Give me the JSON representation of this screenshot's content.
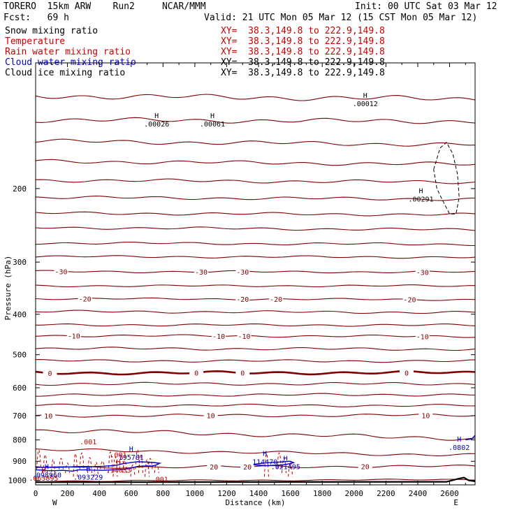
{
  "header": {
    "model": "TORERO  15km ARW    Run2     NCAR/MMM",
    "init": "Init: 00 UTC Sat 03 Mar 12",
    "fcst": "Fcst:   69 h",
    "valid": "Valid: 21 UTC Mon 05 Mar 12 (15 CST Mon 05 Mar 12)"
  },
  "fields": [
    {
      "name": "Snow mixing ratio",
      "color": "#000000",
      "xy": "XY=  38.3,149.8 to 222.9,149.8"
    },
    {
      "name": "Temperature",
      "color": "#cc0000",
      "xy": "XY=  38.3,149.8 to 222.9,149.8"
    },
    {
      "name": "Rain water mixing ratio",
      "color": "#cc0000",
      "xy": "XY=  38.3,149.8 to 222.9,149.8"
    },
    {
      "name": "Cloud water mixing ratio",
      "color": "#0000cc",
      "xy": "XY=  38.3,149.8 to 222.9,149.8"
    },
    {
      "name": "Cloud ice mixing ratio",
      "color": "#000000",
      "xy": "XY=  38.3,149.8 to 222.9,149.8"
    }
  ],
  "chart_data": {
    "type": "cross-section",
    "xlabel": "Distance (km)",
    "ylabel": "Pressure (hPa)",
    "xlim": [
      0,
      2760
    ],
    "ylim": [
      1025,
      100
    ],
    "x_ticks": [
      "0",
      "200",
      "400",
      "600",
      "800",
      "1000",
      "1200",
      "1400",
      "1600",
      "1800",
      "2000",
      "2200",
      "2400",
      "2600"
    ],
    "y_ticks": [
      "200",
      "300",
      "400",
      "500",
      "600",
      "700",
      "800",
      "900",
      "1000"
    ],
    "x_end_labels": {
      "left": "W",
      "right": "E"
    },
    "temperature_levels": [
      {
        "p_left": 120,
        "p_right": 122,
        "wave": 2
      },
      {
        "p_left": 137,
        "p_right": 138,
        "wave": 2
      },
      {
        "p_left": 154,
        "p_right": 157,
        "wave": 2
      },
      {
        "p_left": 172,
        "p_right": 175,
        "wave": 2
      },
      {
        "p_left": 191,
        "p_right": 193,
        "wave": 2
      },
      {
        "p_left": 210,
        "p_right": 212,
        "wave": 2
      },
      {
        "p_left": 229,
        "p_right": 231,
        "wave": 2
      },
      {
        "p_left": 248,
        "p_right": 251,
        "wave": 2
      },
      {
        "p_left": 270,
        "p_right": 272,
        "wave": 2
      },
      {
        "p_left": 291,
        "p_right": 292,
        "wave": 2
      },
      {
        "p_left": 316,
        "p_right": 317,
        "wave": 2,
        "label": "-30",
        "label_at": [
          160,
          1040,
          1300,
          2430
        ]
      },
      {
        "p_left": 342,
        "p_right": 342,
        "wave": 2
      },
      {
        "p_left": 367,
        "p_right": 369,
        "wave": 2,
        "label": "-20",
        "label_at": [
          310,
          1300,
          1510,
          2350
        ]
      },
      {
        "p_left": 394,
        "p_right": 396,
        "wave": 3
      },
      {
        "p_left": 424,
        "p_right": 425,
        "wave": 3
      },
      {
        "p_left": 450,
        "p_right": 452,
        "wave": 3,
        "label": "-10",
        "label_at": [
          240,
          1150,
          1310,
          2430
        ]
      },
      {
        "p_left": 483,
        "p_right": 485,
        "wave": 4
      },
      {
        "p_left": 517,
        "p_right": 518,
        "wave": 4
      },
      {
        "p_left": 553,
        "p_right": 552,
        "wave": 5,
        "label": "0",
        "label_at": [
          90,
          1010,
          1300,
          2330
        ],
        "bold": true
      },
      {
        "p_left": 587,
        "p_right": 587,
        "wave": 5
      },
      {
        "p_left": 625,
        "p_right": 623,
        "wave": 5
      },
      {
        "p_left": 661,
        "p_right": 662,
        "wave": 5
      },
      {
        "p_left": 700,
        "p_right": 698,
        "wave": 6,
        "label": "10",
        "label_at": [
          80,
          1100,
          2450
        ]
      },
      {
        "p_left": 758,
        "p_right": 794,
        "wave": 10
      },
      {
        "p_left": 845,
        "p_right": 870,
        "wave": 8
      },
      {
        "p_left": 930,
        "p_right": 925,
        "wave": 7,
        "label": "20",
        "label_at": [
          1120,
          1330,
          2070
        ]
      },
      {
        "p_left": 1004,
        "p_right": 995,
        "wave": 4
      }
    ],
    "max_labels": [
      {
        "x": 760,
        "p": 142,
        "value": ".00026",
        "color": "#000000"
      },
      {
        "x": 1110,
        "p": 142,
        "value": ".00061",
        "color": "#000000"
      },
      {
        "x": 2070,
        "p": 127,
        "value": ".00012",
        "color": "#000000"
      },
      {
        "x": 2420,
        "p": 215,
        "value": ".00291",
        "color": "#000000"
      },
      {
        "x": 600,
        "p": 893,
        "value": "195781",
        "color": "#0000cc"
      },
      {
        "x": 1440,
        "p": 915,
        "value": "114470",
        "color": "#0000cc"
      },
      {
        "x": 1570,
        "p": 940,
        "value": ".021495",
        "color": "#0000cc"
      },
      {
        "x": 70,
        "p": 985,
        "value": ".098960",
        "color": "#0000cc"
      },
      {
        "x": 330,
        "p": 995,
        "value": ".093229",
        "color": "#0000cc"
      },
      {
        "x": 2660,
        "p": 845,
        "value": ".0802",
        "color": "#0000cc"
      },
      {
        "x": 520,
        "p": 958,
        "value": ".14033",
        "color": "#cc0000"
      },
      {
        "x": 50,
        "p": 1002,
        "value": ".063895",
        "color": "#cc0000"
      }
    ],
    "rain_labels": [
      {
        "x": 330,
        "p": 820,
        "value": ".001"
      },
      {
        "x": 520,
        "p": 880,
        "value": ".001"
      },
      {
        "x": 780,
        "p": 1008,
        "value": ".001"
      }
    ],
    "cloud_water_contour_km": [
      [
        0,
        943
      ],
      [
        40,
        945
      ],
      [
        80,
        948
      ],
      [
        120,
        948
      ],
      [
        170,
        946
      ],
      [
        230,
        950
      ],
      [
        270,
        944
      ],
      [
        320,
        943
      ],
      [
        360,
        945
      ],
      [
        420,
        946
      ],
      [
        480,
        944
      ],
      [
        520,
        942
      ],
      [
        560,
        940
      ],
      [
        600,
        935
      ],
      [
        640,
        926
      ],
      [
        700,
        923
      ],
      [
        730,
        924
      ],
      [
        760,
        918
      ],
      [
        780,
        910
      ],
      [
        740,
        906
      ],
      [
        700,
        904
      ],
      [
        640,
        902
      ],
      [
        590,
        907
      ],
      [
        540,
        913
      ],
      [
        520,
        918
      ],
      [
        480,
        922
      ],
      [
        420,
        925
      ],
      [
        360,
        927
      ],
      [
        300,
        929
      ],
      [
        240,
        929
      ],
      [
        180,
        928
      ],
      [
        120,
        929
      ],
      [
        60,
        930
      ],
      [
        0,
        931
      ]
    ],
    "cloud_water_contour_2": [
      [
        1370,
        918
      ],
      [
        1410,
        920
      ],
      [
        1450,
        922
      ],
      [
        1500,
        920
      ],
      [
        1550,
        918
      ],
      [
        1590,
        913
      ],
      [
        1620,
        907
      ],
      [
        1600,
        900
      ],
      [
        1560,
        902
      ],
      [
        1510,
        905
      ],
      [
        1460,
        907
      ],
      [
        1420,
        910
      ],
      [
        1380,
        914
      ],
      [
        1370,
        918
      ]
    ],
    "ice_contour": [
      [
        2500,
        180
      ],
      [
        2540,
        160
      ],
      [
        2580,
        155
      ],
      [
        2620,
        165
      ],
      [
        2650,
        185
      ],
      [
        2660,
        210
      ],
      [
        2640,
        230
      ],
      [
        2600,
        230
      ],
      [
        2560,
        215
      ],
      [
        2520,
        200
      ],
      [
        2500,
        180
      ]
    ]
  }
}
